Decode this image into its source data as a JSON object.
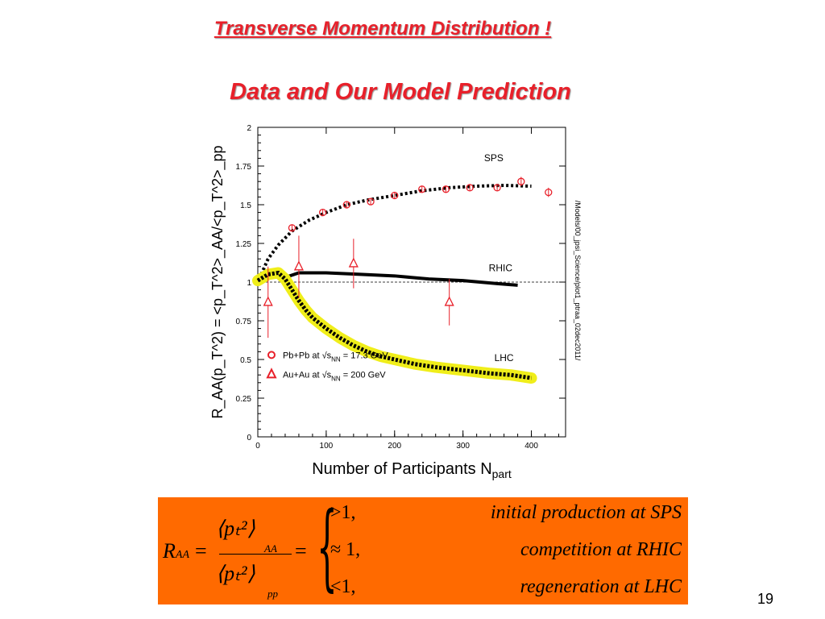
{
  "slide": {
    "title": "Transverse Momentum Distribution !",
    "subtitle": "Data and Our Model Prediction",
    "page_number": "19"
  },
  "chart_data": {
    "type": "scatter",
    "xlabel": "Number of Participants N",
    "xlabel_sub": "part",
    "ylabel": "R_AA(p_T^2) = <p_T^2>_AA/<p_T^2>_pp",
    "xlim": [
      0,
      450
    ],
    "ylim": [
      0,
      2
    ],
    "x_ticks": [
      0,
      100,
      200,
      300,
      400
    ],
    "y_ticks": [
      "0",
      "0.25",
      "0.5",
      "0.75",
      "1",
      "1.25",
      "1.5",
      "1.75",
      "2"
    ],
    "y_tick_values": [
      0,
      0.25,
      0.5,
      0.75,
      1,
      1.25,
      1.5,
      1.75,
      2
    ],
    "reference_line": 1,
    "side_text": "/Models/00_jpsi_Science/plot1_ptraa_02dec2011/",
    "curve_labels": [
      {
        "text": "SPS",
        "x": 345,
        "y": 1.78
      },
      {
        "text": "RHIC",
        "x": 355,
        "y": 1.07
      },
      {
        "text": "LHC",
        "x": 360,
        "y": 0.49
      }
    ],
    "series": [
      {
        "name": "SPS model",
        "style": "dotted",
        "color": "#000000",
        "x": [
          5,
          15,
          30,
          50,
          75,
          100,
          130,
          160,
          200,
          240,
          280,
          320,
          360,
          400
        ],
        "y": [
          1.05,
          1.15,
          1.24,
          1.33,
          1.4,
          1.45,
          1.5,
          1.53,
          1.56,
          1.59,
          1.61,
          1.62,
          1.625,
          1.62
        ]
      },
      {
        "name": "RHIC model",
        "style": "solid",
        "color": "#000000",
        "x": [
          5,
          20,
          40,
          60,
          100,
          150,
          200,
          250,
          300,
          350,
          380
        ],
        "y": [
          1.02,
          1.04,
          1.03,
          1.06,
          1.06,
          1.05,
          1.04,
          1.02,
          1.01,
          0.99,
          0.98
        ]
      },
      {
        "name": "LHC model",
        "style": "dotted-band",
        "color": "#000000",
        "band_color": "#f0ee1a",
        "x": [
          0,
          15,
          30,
          40,
          50,
          60,
          70,
          80,
          100,
          120,
          140,
          160,
          180,
          200,
          230,
          260,
          300,
          340,
          370,
          400
        ],
        "y": [
          1.01,
          1.05,
          1.06,
          1.02,
          0.95,
          0.88,
          0.82,
          0.77,
          0.7,
          0.64,
          0.59,
          0.55,
          0.52,
          0.5,
          0.47,
          0.45,
          0.43,
          0.41,
          0.4,
          0.38
        ]
      }
    ],
    "data_sets": [
      {
        "name": "Pb+Pb at √s_NN = 17.3 GeV",
        "marker": "circle",
        "color": "#e8202a",
        "points": [
          {
            "x": 50,
            "y": 1.35,
            "err": 0.02
          },
          {
            "x": 95,
            "y": 1.45,
            "err": 0.02
          },
          {
            "x": 130,
            "y": 1.5,
            "err": 0.02
          },
          {
            "x": 165,
            "y": 1.52,
            "err": 0.02
          },
          {
            "x": 200,
            "y": 1.56,
            "err": 0.02
          },
          {
            "x": 240,
            "y": 1.6,
            "err": 0.02
          },
          {
            "x": 275,
            "y": 1.6,
            "err": 0.02
          },
          {
            "x": 310,
            "y": 1.61,
            "err": 0.02
          },
          {
            "x": 350,
            "y": 1.61,
            "err": 0.02
          },
          {
            "x": 385,
            "y": 1.65,
            "err": 0.03
          },
          {
            "x": 425,
            "y": 1.58,
            "err": 0.03
          }
        ]
      },
      {
        "name": "Au+Au at √s_NN = 200 GeV",
        "marker": "triangle",
        "color": "#e8202a",
        "points": [
          {
            "x": 15,
            "y": 0.87,
            "err": 0.23
          },
          {
            "x": 60,
            "y": 1.1,
            "err": 0.2
          },
          {
            "x": 140,
            "y": 1.12,
            "err": 0.16
          },
          {
            "x": 280,
            "y": 0.87,
            "err": 0.15
          }
        ]
      }
    ],
    "legend": {
      "position": "bottom-left",
      "entries": [
        {
          "marker": "circle",
          "text": "Pb+Pb at √s",
          "sub": "NN",
          "tail": " = 17.3 GeV"
        },
        {
          "marker": "triangle",
          "text": "Au+Au at √s",
          "sub": "NN",
          "tail": " = 200 GeV"
        }
      ]
    }
  },
  "formula": {
    "lhs_R": "R",
    "lhs_sub": "AA",
    "equals": "=",
    "numerator": "⟨pₜ²⟩",
    "numerator_sub": "AA",
    "denominator": "⟨pₜ²⟩",
    "denominator_sub": "pp",
    "equals2": "=",
    "brace": "{",
    "cases": [
      {
        "relation": ">1,",
        "description": "initial production at SPS"
      },
      {
        "relation": "≈ 1,",
        "description": "competition at RHIC"
      },
      {
        "relation": "<1,",
        "description": "regeneration at LHC"
      }
    ]
  }
}
